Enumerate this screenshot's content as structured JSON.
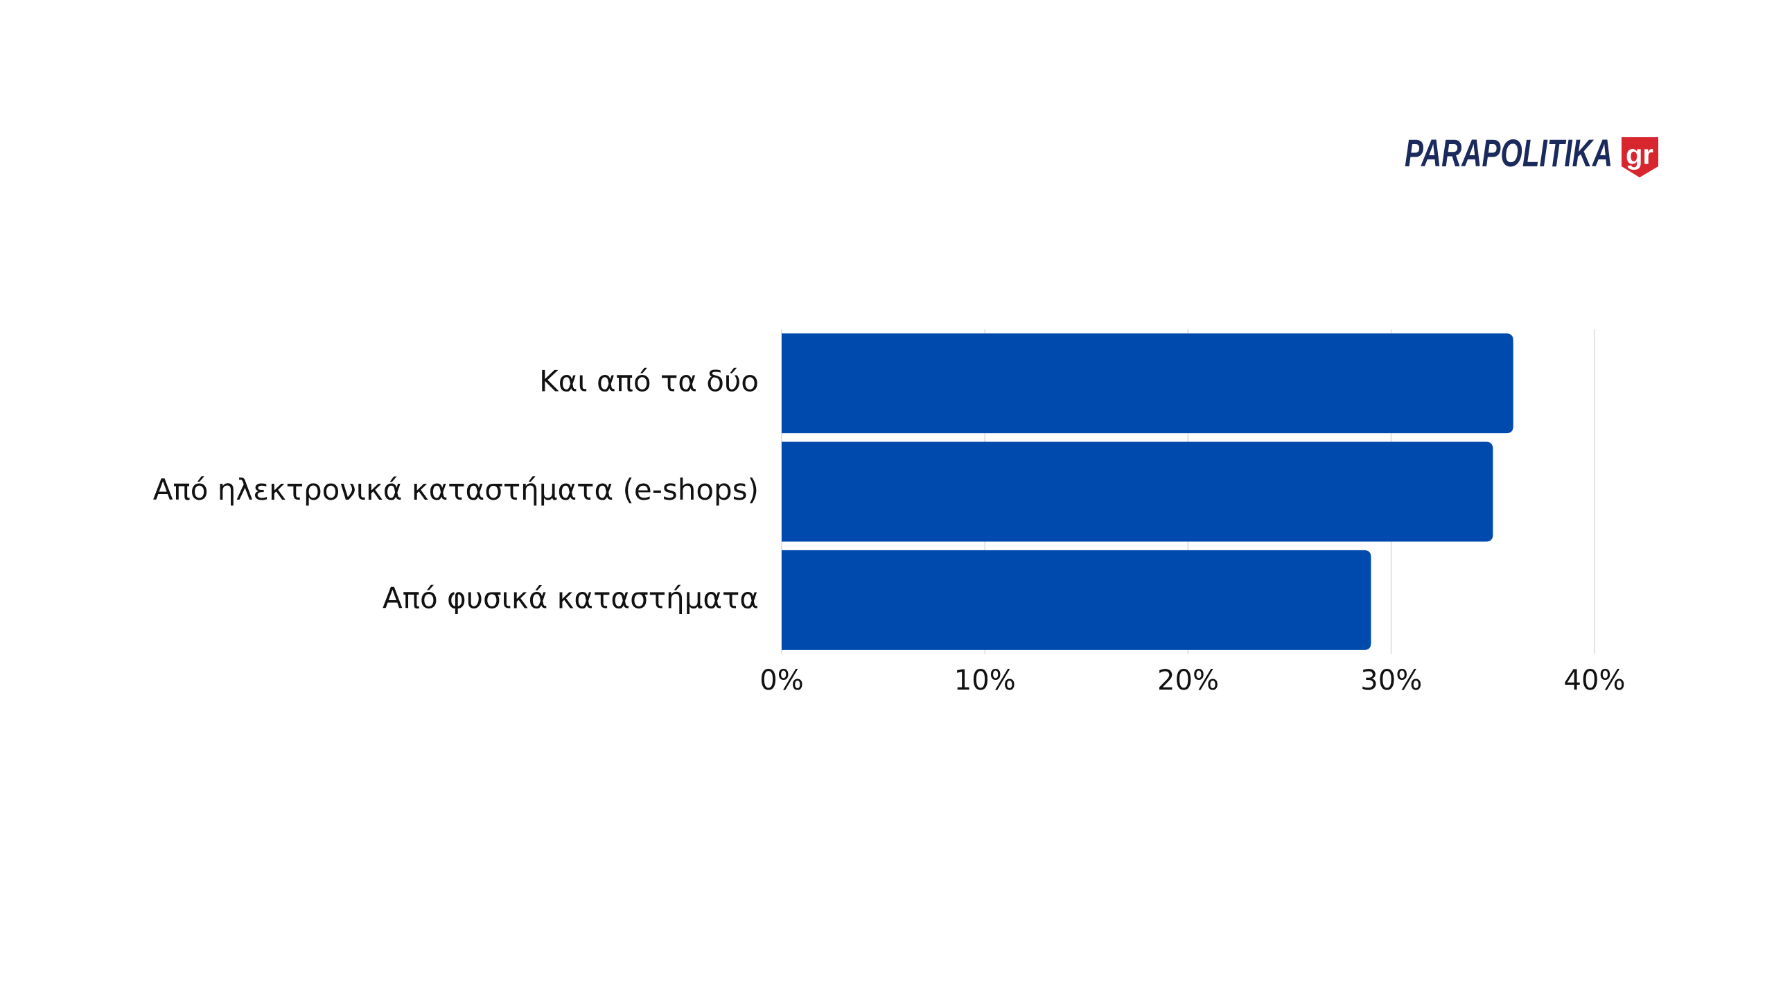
{
  "chart_data": {
    "type": "bar",
    "orientation": "horizontal",
    "categories": [
      "Και από τα δύο",
      "Από ηλεκτρονικά καταστήματα (e-shops)",
      "Από φυσικά καταστήματα"
    ],
    "values": [
      36,
      35,
      29
    ],
    "color": "#004aad",
    "xlim": [
      0,
      40
    ],
    "xticks": [
      {
        "value": 0,
        "label": "0%"
      },
      {
        "value": 10,
        "label": "10%"
      },
      {
        "value": 20,
        "label": "20%"
      },
      {
        "value": 30,
        "label": "30%"
      },
      {
        "value": 40,
        "label": "40%"
      }
    ],
    "grid": true
  },
  "logo": {
    "text": "PARAPOLITIKA",
    "suffix": "gr"
  }
}
